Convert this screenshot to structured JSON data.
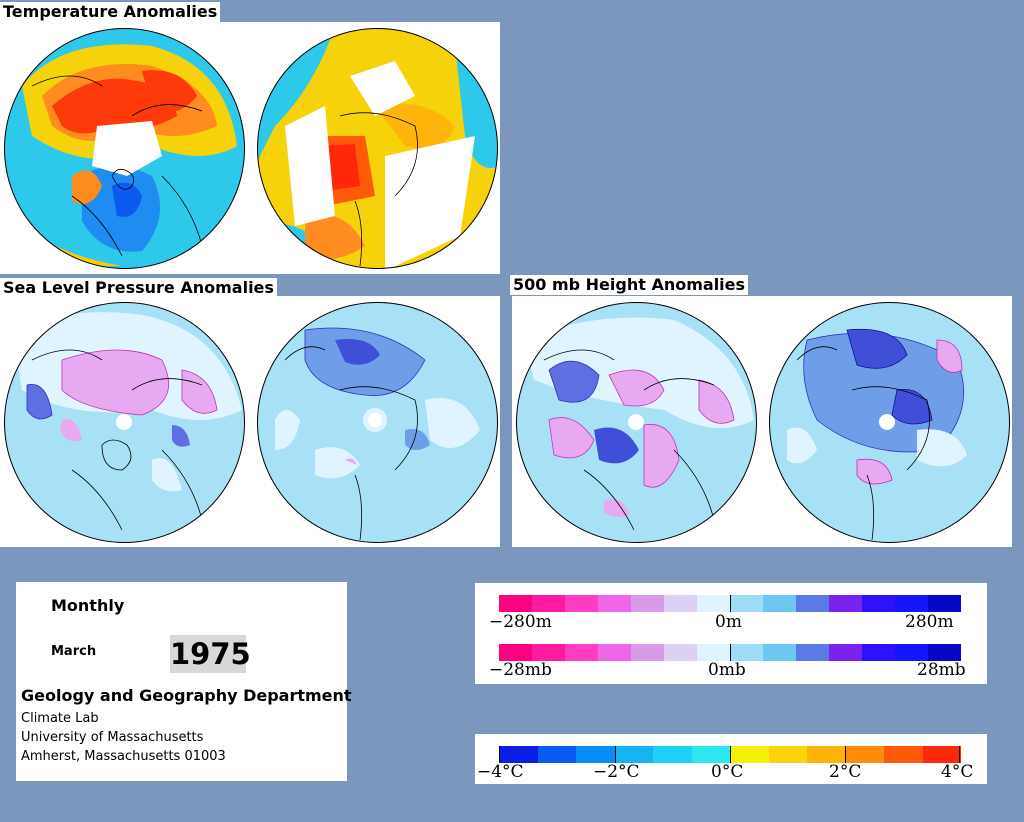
{
  "titles": {
    "temperature": "Temperature Anomalies",
    "slp": "Sea Level Pressure Anomalies",
    "height500": "500 mb Height Anomalies"
  },
  "info": {
    "period": "Monthly",
    "month": "March",
    "year": "1975",
    "department": "Geology and Geography Department",
    "lines": [
      "Climate Lab",
      "University of Massachusetts",
      "Amherst, Massachusetts 01003"
    ]
  },
  "legend_height": {
    "colors": [
      "#ff0080",
      "#ff1aa0",
      "#ff3ec4",
      "#ee66e8",
      "#d99ae8",
      "#ddd0f5",
      "#dff4ff",
      "#9fdcf5",
      "#6ec7ef",
      "#5b7ae6",
      "#7a22ee",
      "#3011ff",
      "#1414ff",
      "#0707c8"
    ],
    "labels": [
      "−280m",
      "0m",
      "280m"
    ]
  },
  "legend_pressure": {
    "colors": [
      "#ff0080",
      "#ff1aa0",
      "#ff3ec4",
      "#ee66e8",
      "#d99ae8",
      "#ddd0f5",
      "#dff4ff",
      "#9fdcf5",
      "#6ec7ef",
      "#5b7ae6",
      "#7a22ee",
      "#3011ff",
      "#1414ff",
      "#0707c8"
    ],
    "labels": [
      "−28mb",
      "0mb",
      "28mb"
    ]
  },
  "legend_temp": {
    "colors": [
      "#0a1ee6",
      "#0a5af0",
      "#0a8cf5",
      "#14b4f5",
      "#1ed2f5",
      "#2ee6f0",
      "#f5f00a",
      "#ffd20a",
      "#ffb40a",
      "#ff8c0a",
      "#ff5a0a",
      "#ff280a"
    ],
    "labels": [
      "−4°C",
      "−2°C",
      "0°C",
      "2°C",
      "4°C"
    ]
  },
  "colors": {
    "background": "#7b97bd",
    "ocean_cyan": "#2ec8ea",
    "warm_yellow": "#f5d20a",
    "warm_orange": "#ff8c1e",
    "warm_red": "#ff3a0a",
    "cold_blue": "#1e8cf0",
    "slp_base": "#a8e0f5",
    "slp_light": "#dff4ff",
    "slp_blue": "#6f9ee8",
    "slp_dark": "#3f4fd8",
    "slp_pink": "#e7aaf0"
  }
}
